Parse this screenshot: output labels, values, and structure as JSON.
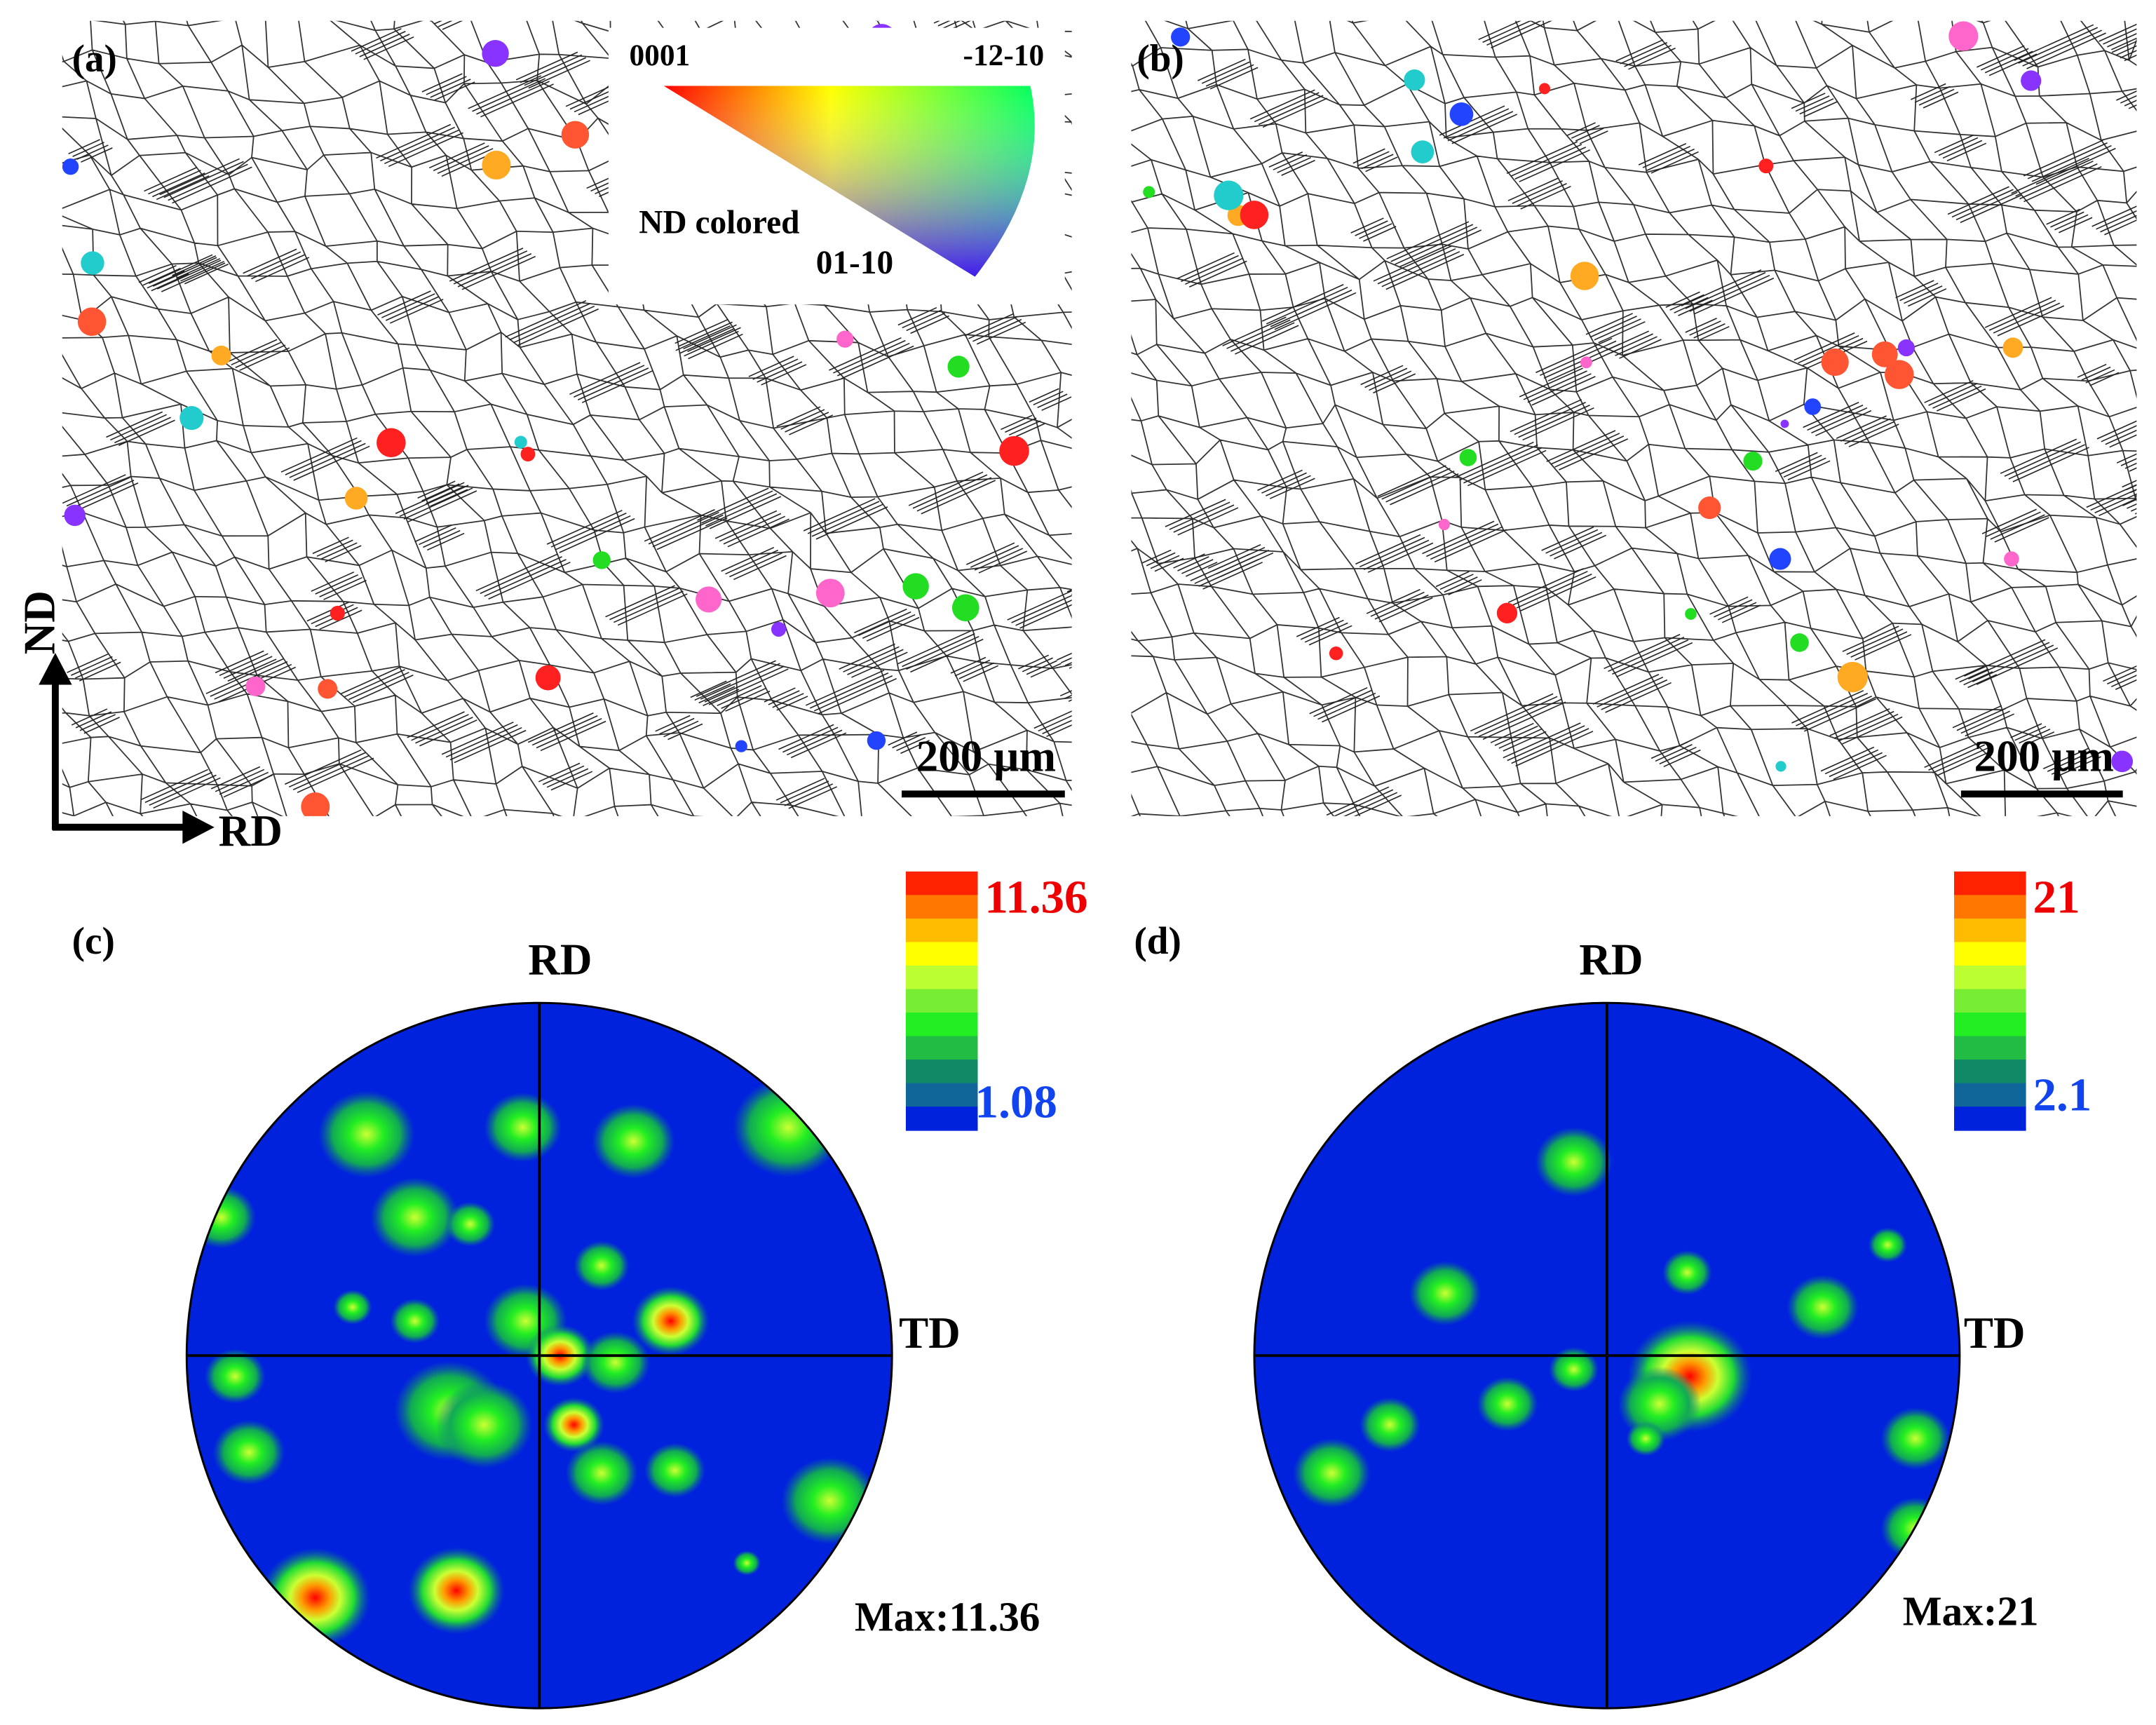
{
  "panels": {
    "a": {
      "label": "(a)",
      "legend": {
        "top_left": "0001",
        "top_right": "-12-10",
        "caption": "ND colored",
        "bottom": "01-10"
      },
      "scale_bar": "200 µm",
      "axes": {
        "vertical": "ND",
        "horizontal": "RD"
      }
    },
    "b": {
      "label": "(b)",
      "scale_bar": "200 µm"
    },
    "c": {
      "label": "(c)",
      "top": "RD",
      "right": "TD",
      "colorbar": {
        "max": "11.36",
        "min": "1.08"
      },
      "max_text": "Max:11.36"
    },
    "d": {
      "label": "(d)",
      "top": "RD",
      "right": "TD",
      "colorbar": {
        "max": "21",
        "min": "2.1"
      },
      "max_text": "Max:21"
    }
  }
}
